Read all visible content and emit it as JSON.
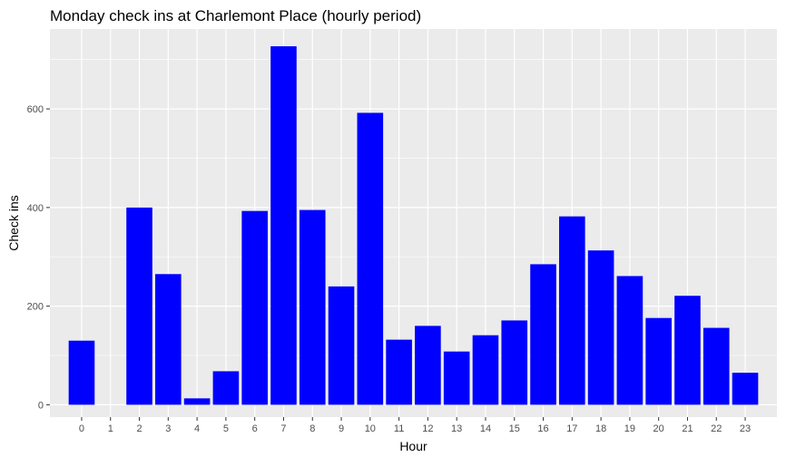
{
  "chart_data": {
    "type": "bar",
    "title": "Monday check ins at Charlemont Place (hourly period)",
    "xlabel": "Hour",
    "ylabel": "Check ins",
    "categories": [
      "0",
      "1",
      "2",
      "3",
      "4",
      "5",
      "6",
      "7",
      "8",
      "9",
      "10",
      "11",
      "12",
      "13",
      "14",
      "15",
      "16",
      "17",
      "18",
      "19",
      "20",
      "21",
      "22",
      "23"
    ],
    "values": [
      130,
      0,
      400,
      265,
      13,
      68,
      393,
      727,
      395,
      240,
      592,
      132,
      160,
      108,
      141,
      171,
      285,
      382,
      313,
      261,
      176,
      221,
      156,
      65
    ],
    "yticks": [
      0,
      200,
      400,
      600
    ],
    "ylim": [
      -25,
      762
    ],
    "grid": true,
    "bar_color": "#0000FF",
    "panel_color": "#EBEBEB",
    "grid_color": "#FFFFFF"
  }
}
